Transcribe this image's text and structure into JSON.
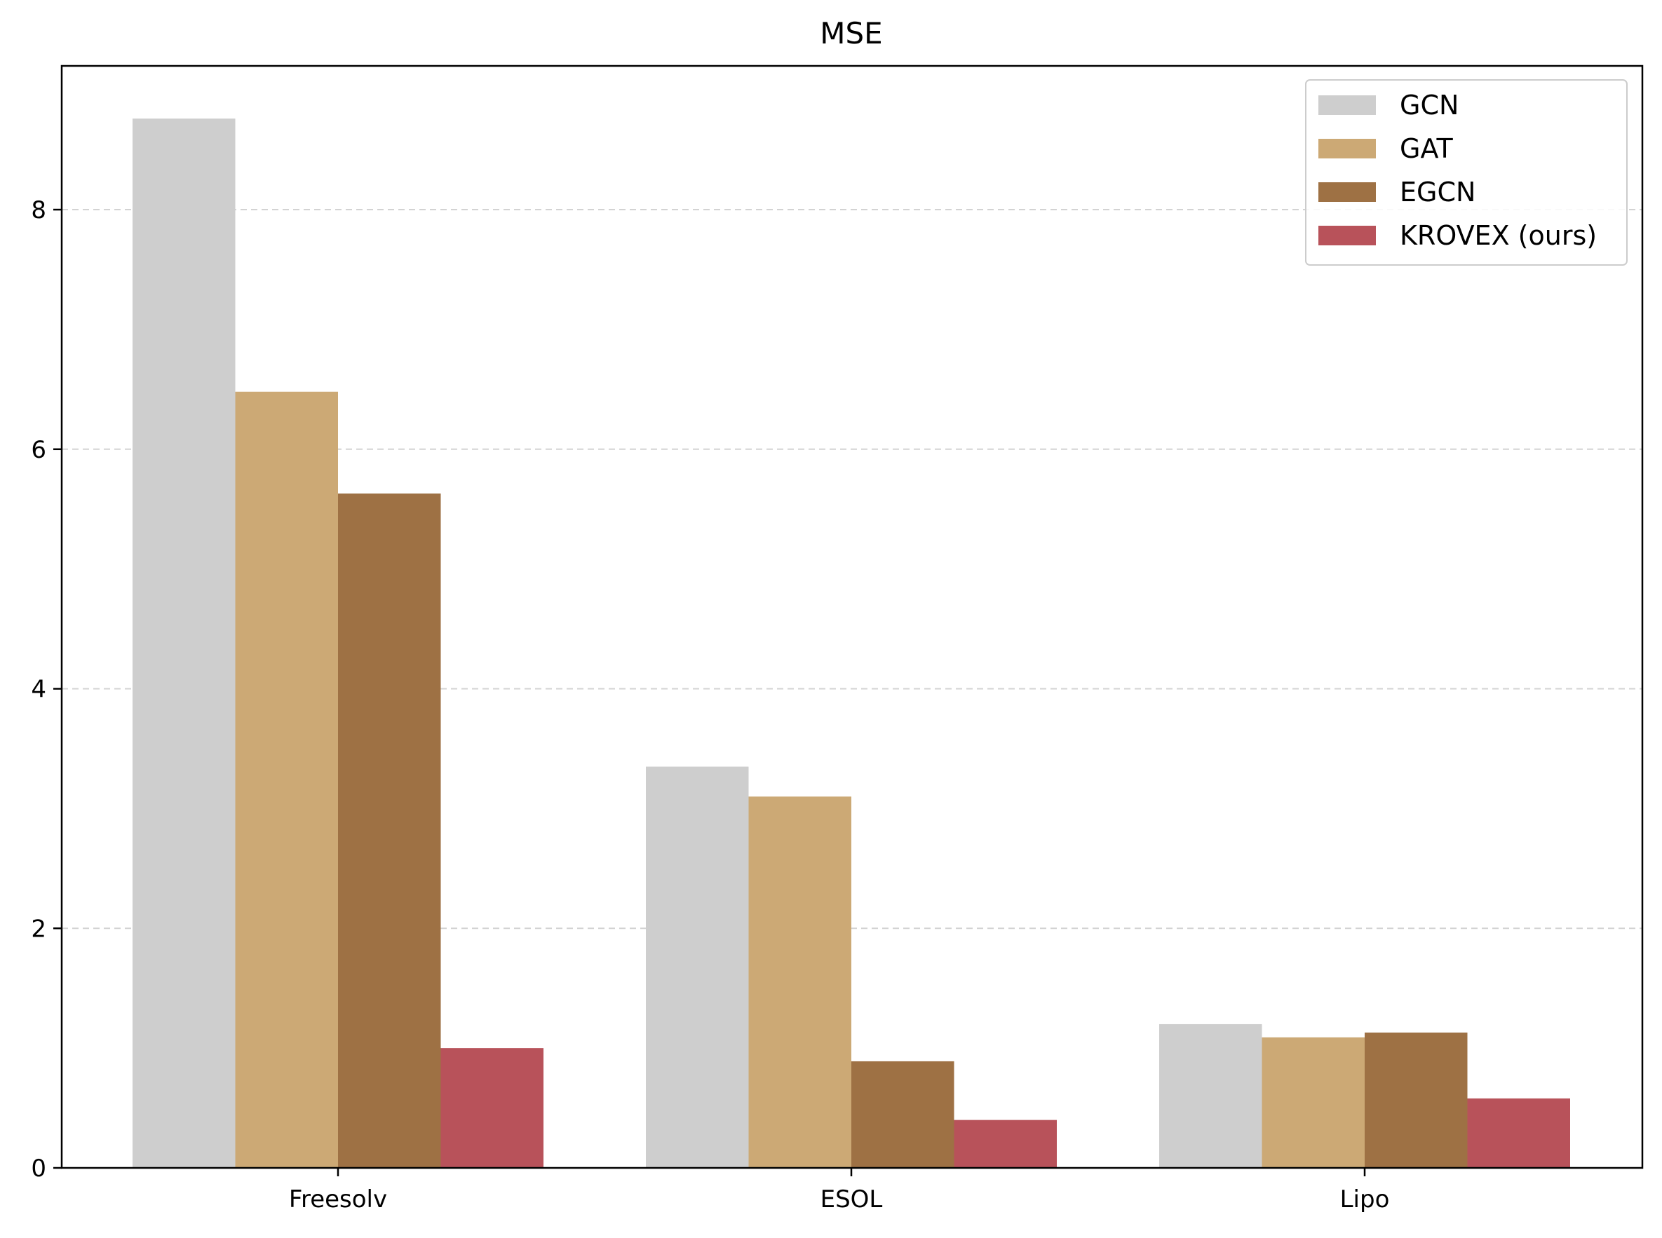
{
  "chart_data": {
    "type": "bar",
    "title": "MSE",
    "xlabel": "",
    "ylabel": "",
    "categories": [
      "Freesolv",
      "ESOL",
      "Lipo"
    ],
    "series": [
      {
        "name": "GCN",
        "color": "#cecece",
        "values": [
          8.76,
          3.35,
          1.2
        ]
      },
      {
        "name": "GAT",
        "color": "#cca975",
        "values": [
          6.48,
          3.1,
          1.09
        ]
      },
      {
        "name": "EGCN",
        "color": "#9e7144",
        "values": [
          5.63,
          0.89,
          1.13
        ]
      },
      {
        "name": "KROVEX (ours)",
        "color": "#b8525a",
        "values": [
          1.0,
          0.4,
          0.58
        ]
      }
    ],
    "ylim": [
      0,
      9.2
    ],
    "yticks": [
      0,
      2,
      4,
      6,
      8
    ],
    "grid": "y-dashed",
    "legend_position": "top-right"
  }
}
